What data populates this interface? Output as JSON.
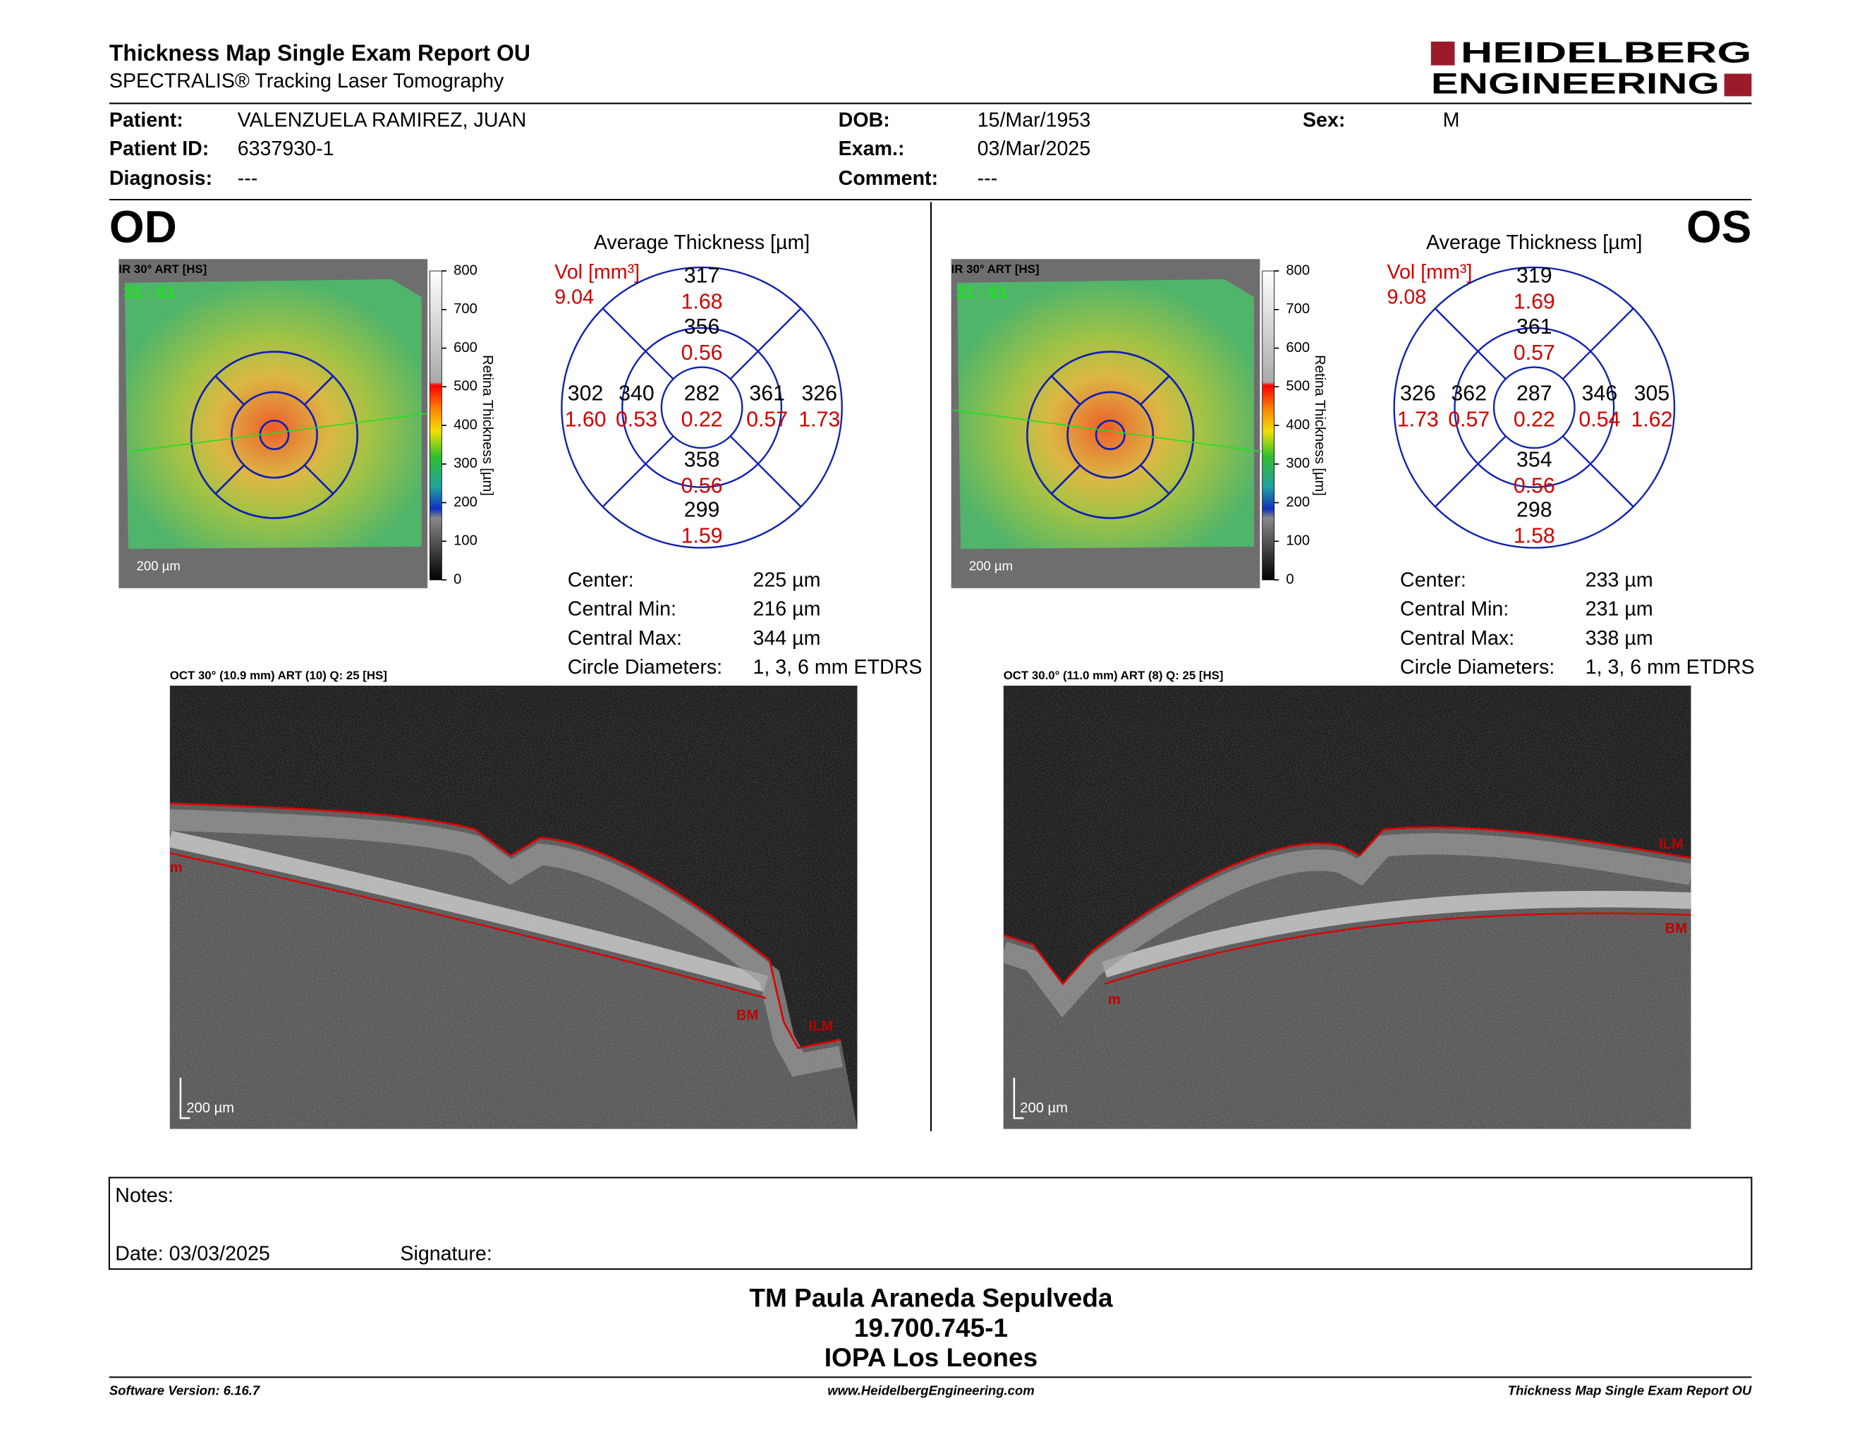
{
  "header": {
    "title": "Thickness Map Single Exam Report OU",
    "subtitle": "SPECTRALIS® Tracking Laser Tomography",
    "logo_top": "HEIDELBERG",
    "logo_bottom": "ENGINEERING"
  },
  "patient": {
    "fields": [
      {
        "label": "Patient:",
        "value": "VALENZUELA RAMIREZ, JUAN"
      },
      {
        "label": "Patient ID:",
        "value": "6337930-1"
      },
      {
        "label": "Diagnosis:",
        "value": "---"
      },
      {
        "label": "DOB:",
        "value": "15/Mar/1953"
      },
      {
        "label": "Exam.:",
        "value": "03/Mar/2025"
      },
      {
        "label": "Comment:",
        "value": "---"
      },
      {
        "label": "Sex:",
        "value": "M"
      }
    ]
  },
  "eyes": [
    {
      "label": "OD",
      "ir_label": "IR 30° ART [HS]",
      "ir_ratio": "31 : 61",
      "scale_bar": "200 µm",
      "colorbar": {
        "title": "Retina Thickness [µm]",
        "ticks": [
          800,
          700,
          600,
          500,
          400,
          300,
          200,
          100,
          0
        ]
      },
      "thickness_title": "Average Thickness [µm]",
      "volume_label": "Vol [mm³]",
      "total_volume": "9.04",
      "sectors": [
        {
          "thickness": 282,
          "volume": "0.22"
        },
        {
          "thickness": 356,
          "volume": "0.56"
        },
        {
          "thickness": 361,
          "volume": "0.57"
        },
        {
          "thickness": 358,
          "volume": "0.56"
        },
        {
          "thickness": 340,
          "volume": "0.53"
        },
        {
          "thickness": 317,
          "volume": "1.68"
        },
        {
          "thickness": 326,
          "volume": "1.73"
        },
        {
          "thickness": 299,
          "volume": "1.59"
        },
        {
          "thickness": 302,
          "volume": "1.60"
        }
      ],
      "stats": [
        {
          "label": "Center:",
          "value": "225 µm"
        },
        {
          "label": "Central Min:",
          "value": "216 µm"
        },
        {
          "label": "Central Max:",
          "value": "344 µm"
        },
        {
          "label": "Circle Diameters:",
          "value": "1, 3, 6 mm ETDRS"
        }
      ],
      "oct": {
        "label": "OCT 30° (10.9 mm) ART (10) Q: 25 [HS]",
        "scale_bar": "200 µm",
        "markers": [
          "m",
          "BM",
          "ILM"
        ]
      }
    },
    {
      "label": "OS",
      "ir_label": "IR 30° ART [HS]",
      "ir_ratio": "31 : 61",
      "scale_bar": "200 µm",
      "colorbar": {
        "title": "Retina Thickness [µm]",
        "ticks": [
          800,
          700,
          600,
          500,
          400,
          300,
          200,
          100,
          0
        ]
      },
      "thickness_title": "Average Thickness [µm]",
      "volume_label": "Vol [mm³]",
      "total_volume": "9.08",
      "sectors": [
        {
          "thickness": 287,
          "volume": "0.22"
        },
        {
          "thickness": 361,
          "volume": "0.57"
        },
        {
          "thickness": 346,
          "volume": "0.54"
        },
        {
          "thickness": 354,
          "volume": "0.56"
        },
        {
          "thickness": 362,
          "volume": "0.57"
        },
        {
          "thickness": 319,
          "volume": "1.69"
        },
        {
          "thickness": 305,
          "volume": "1.62"
        },
        {
          "thickness": 298,
          "volume": "1.58"
        },
        {
          "thickness": 326,
          "volume": "1.73"
        }
      ],
      "stats": [
        {
          "label": "Center:",
          "value": "233 µm"
        },
        {
          "label": "Central Min:",
          "value": "231 µm"
        },
        {
          "label": "Central Max:",
          "value": "338 µm"
        },
        {
          "label": "Circle Diameters:",
          "value": "1, 3, 6 mm ETDRS"
        }
      ],
      "oct": {
        "label": "OCT 30.0° (11.0 mm) ART (8) Q: 25 [HS]",
        "scale_bar": "200 µm",
        "markers": [
          "ILM",
          "BM",
          "m"
        ]
      }
    }
  ],
  "notes": {
    "label": "Notes:",
    "date": "Date: 03/03/2025",
    "signature": "Signature:"
  },
  "signature_block": {
    "lines": [
      "TM Paula Araneda Sepulveda",
      "19.700.745-1",
      "IOPA Los Leones"
    ]
  },
  "footer": {
    "left": "Software Version: 6.16.7",
    "center": "www.HeidelbergEngineering.com",
    "right": "Thickness Map Single Exam Report OU"
  }
}
